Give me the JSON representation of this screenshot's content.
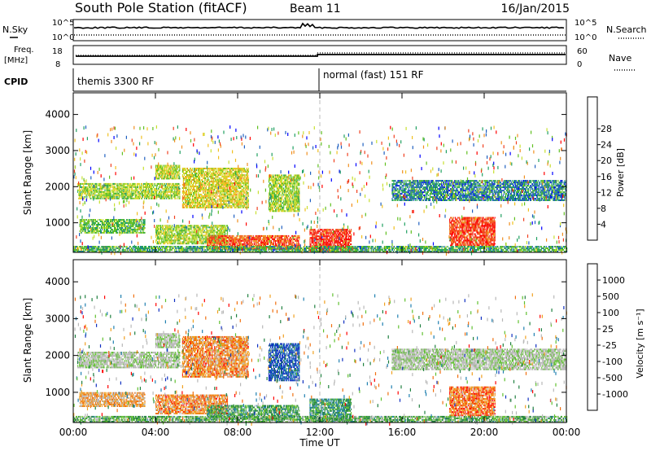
{
  "header": {
    "station": "South Pole Station (fitACF)",
    "beam": "Beam 11",
    "date": "16/Jan/2015"
  },
  "top_panels": {
    "nsky_label": "N.Sky",
    "nsearch_label": "N.Search",
    "noise_ticks": [
      "10^5",
      "10^0"
    ],
    "freq_label_1": "Freq.",
    "freq_label_2": "[MHz]",
    "freq_ticks": [
      "18",
      "8"
    ],
    "nave_label": "Nave",
    "nave_ticks": [
      "60",
      "0"
    ],
    "cpid_label": "CPID",
    "cpid_segments": [
      {
        "label": "themis 3300 RF",
        "start_hour": 0
      },
      {
        "label": "normal (fast) 151 RF",
        "start_hour": 12
      }
    ]
  },
  "chart_data": [
    {
      "type": "heatmap",
      "name": "power",
      "ylabel": "Slant Range [km]",
      "xlabel": "Time UT",
      "xlim_hours": [
        0,
        24
      ],
      "xticks": [
        "00:00",
        "04:00",
        "08:00",
        "12:00",
        "16:00",
        "20:00",
        "00:00"
      ],
      "ylim": [
        180,
        4600
      ],
      "yticks": [
        "1000",
        "2000",
        "3000",
        "4000"
      ],
      "colorbar_label": "Power [dB]",
      "colorbar_ticks": [
        "4",
        "8",
        "12",
        "16",
        "20",
        "24",
        "28"
      ],
      "colorbar_colors": [
        "#0000ff",
        "#2060c0",
        "#20a060",
        "#60c020",
        "#c8e030",
        "#f0c020",
        "#f09020",
        "#f04020",
        "#ff0000"
      ],
      "regions": [
        {
          "t0": 0.2,
          "t1": 5.2,
          "r0": 1650,
          "r1": 2100,
          "level": 0.45
        },
        {
          "t0": 4.0,
          "t1": 5.2,
          "r0": 2200,
          "r1": 2600,
          "level": 0.5
        },
        {
          "t0": 5.3,
          "t1": 8.5,
          "r0": 1400,
          "r1": 2500,
          "level": 0.55
        },
        {
          "t0": 0.3,
          "t1": 3.5,
          "r0": 700,
          "r1": 1100,
          "level": 0.35
        },
        {
          "t0": 4.0,
          "t1": 7.5,
          "r0": 400,
          "r1": 900,
          "level": 0.45
        },
        {
          "t0": 6.5,
          "t1": 11.0,
          "r0": 250,
          "r1": 650,
          "level": 0.85
        },
        {
          "t0": 9.5,
          "t1": 11.0,
          "r0": 1300,
          "r1": 2300,
          "level": 0.45
        },
        {
          "t0": 11.5,
          "t1": 13.5,
          "r0": 200,
          "r1": 800,
          "level": 0.95
        },
        {
          "t0": 15.5,
          "t1": 24.0,
          "r0": 1600,
          "r1": 2150,
          "level": 0.2
        },
        {
          "t0": 18.3,
          "t1": 20.5,
          "r0": 350,
          "r1": 1150,
          "level": 0.9
        },
        {
          "t0": 0.0,
          "t1": 24.0,
          "r0": 180,
          "r1": 320,
          "level": 0.3
        }
      ]
    },
    {
      "type": "heatmap",
      "name": "velocity",
      "ylabel": "Slant Range [km]",
      "xlabel": "Time UT",
      "xlim_hours": [
        0,
        24
      ],
      "xticks": [
        "00:00",
        "04:00",
        "08:00",
        "12:00",
        "16:00",
        "20:00",
        "00:00"
      ],
      "ylim": [
        180,
        4600
      ],
      "yticks": [
        "1000",
        "2000",
        "3000",
        "4000"
      ],
      "colorbar_label": "Velocity [m s⁻¹]",
      "colorbar_ticks": [
        "1000",
        "500",
        "100",
        "25",
        "-25",
        "-100",
        "-500",
        "-1000"
      ],
      "colorbar_colors": [
        "#1030c0",
        "#2080b0",
        "#208040",
        "#60c030",
        "#b8b8b8",
        "#b8b8b8",
        "#f0a020",
        "#f07010",
        "#ff0000"
      ],
      "regions": [
        {
          "t0": 0.2,
          "t1": 5.2,
          "r0": 1650,
          "r1": 2100,
          "level": 0.5
        },
        {
          "t0": 4.0,
          "t1": 5.2,
          "r0": 2200,
          "r1": 2600,
          "level": 0.5
        },
        {
          "t0": 5.3,
          "t1": 8.5,
          "r0": 1400,
          "r1": 2500,
          "level": 0.8
        },
        {
          "t0": 0.3,
          "t1": 3.5,
          "r0": 600,
          "r1": 1000,
          "level": 0.75
        },
        {
          "t0": 4.0,
          "t1": 7.5,
          "r0": 400,
          "r1": 900,
          "level": 0.8
        },
        {
          "t0": 6.5,
          "t1": 11.0,
          "r0": 250,
          "r1": 650,
          "level": 0.3
        },
        {
          "t0": 9.5,
          "t1": 11.0,
          "r0": 1300,
          "r1": 2300,
          "level": 0.05
        },
        {
          "t0": 11.5,
          "t1": 13.5,
          "r0": 200,
          "r1": 800,
          "level": 0.25
        },
        {
          "t0": 15.5,
          "t1": 24.0,
          "r0": 1600,
          "r1": 2150,
          "level": 0.5
        },
        {
          "t0": 18.3,
          "t1": 20.5,
          "r0": 350,
          "r1": 1150,
          "level": 0.85
        },
        {
          "t0": 0.0,
          "t1": 24.0,
          "r0": 180,
          "r1": 320,
          "level": 0.35
        }
      ]
    }
  ]
}
